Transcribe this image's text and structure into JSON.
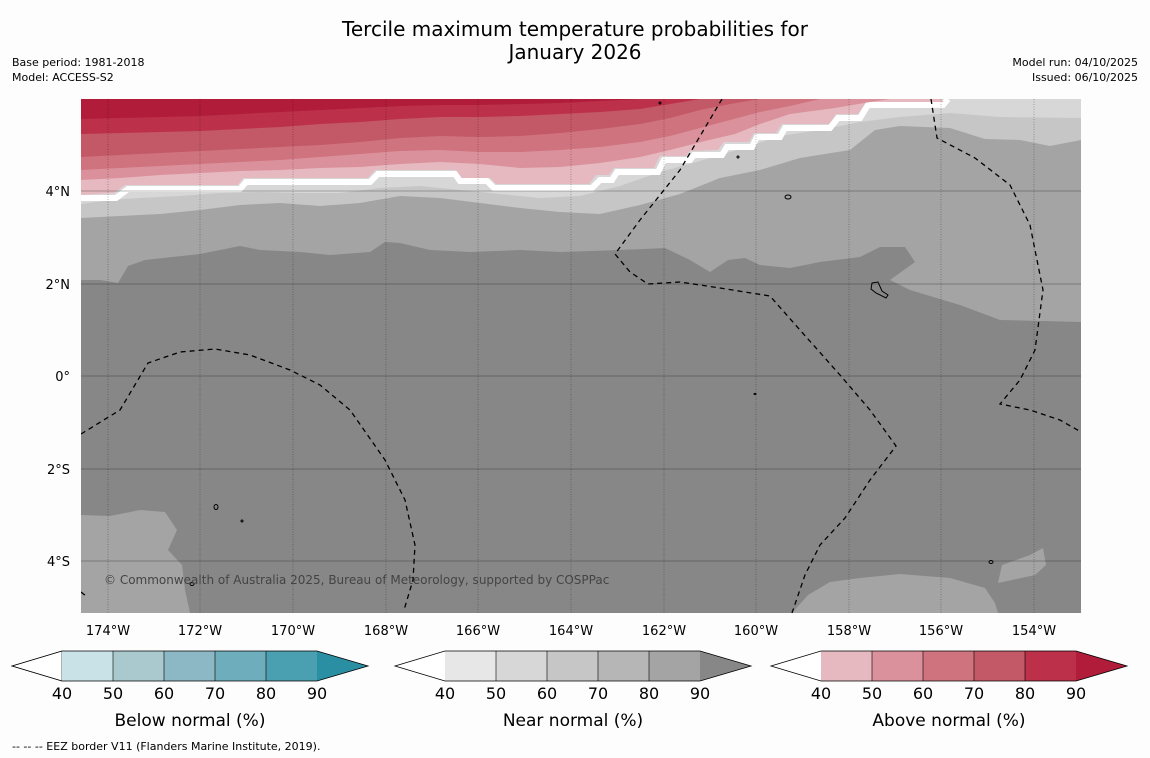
{
  "title_line1": "Tercile maximum temperature probabilities for",
  "title_line2": "January 2026",
  "base_period": "Base period: 1981-2018",
  "model": "Model: ACCESS-S2",
  "model_run": "Model run: 04/10/2025",
  "issued": "Issued: 06/10/2025",
  "copyright": "© Commonwealth of Australia 2025, Bureau of Meteorology, supported by COSPPac",
  "footnote": "--  --  -- EEZ border V11 (Flanders Marine Institute, 2019).",
  "lat_labels": [
    "4°N",
    "2°N",
    "0°",
    "2°S",
    "4°S"
  ],
  "lon_labels": [
    "174°W",
    "172°W",
    "170°W",
    "168°W",
    "166°W",
    "164°W",
    "162°W",
    "160°W",
    "158°W",
    "156°W",
    "154°W"
  ],
  "colorbars": [
    {
      "title": "Below normal (%)",
      "ticks": [
        "40",
        "50",
        "60",
        "70",
        "80",
        "90"
      ],
      "colors": [
        "#ffffff",
        "#c9e2e8",
        "#a9c9cf",
        "#8cb8c6",
        "#6eadbb",
        "#4a9fb1",
        "#2b8fa3"
      ]
    },
    {
      "title": "Near normal (%)",
      "ticks": [
        "40",
        "50",
        "60",
        "70",
        "80",
        "90"
      ],
      "colors": [
        "#ffffff",
        "#e7e7e7",
        "#d7d7d7",
        "#c6c6c6",
        "#b6b6b6",
        "#a4a4a4",
        "#878787"
      ]
    },
    {
      "title": "Above normal (%)",
      "ticks": [
        "40",
        "50",
        "60",
        "70",
        "80",
        "90"
      ],
      "colors": [
        "#ffffff",
        "#e5b9bf",
        "#db919c",
        "#cf737e",
        "#c35867",
        "#bc3049",
        "#b01c3a"
      ]
    }
  ],
  "colors": {
    "near_90": "#878787",
    "near_80": "#a4a4a4",
    "near_70": "#c6c6c6",
    "near_60": "#d7d7d7",
    "above_40": "#e5b9bf",
    "above_50": "#db919c",
    "above_60": "#cf737e",
    "above_70": "#c35867",
    "above_80": "#bc3049",
    "above_90": "#b01c3a"
  }
}
